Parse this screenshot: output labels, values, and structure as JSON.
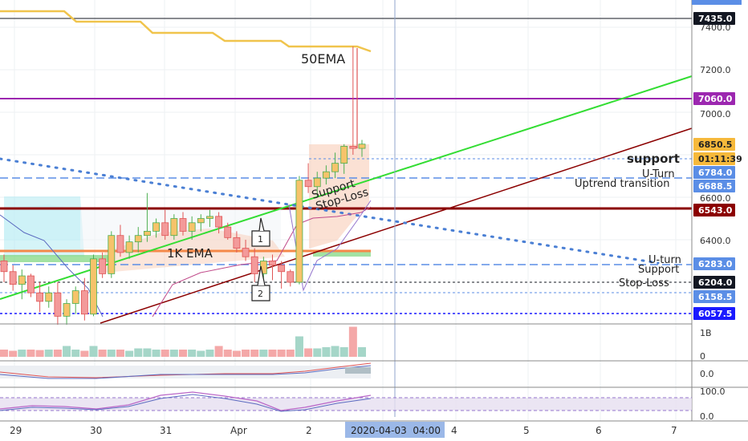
{
  "chart_data": {
    "type": "candlestick",
    "title": "",
    "ylim": [
      6000,
      7550
    ],
    "x_tick_labels": [
      "29",
      "30",
      "31",
      "Apr",
      "2",
      "3",
      "4",
      "5",
      "6",
      "7"
    ],
    "y_tick_labels": [
      "7400.0",
      "7200.0",
      "7000.0",
      "6600.0",
      "6400.0"
    ],
    "price_tags": [
      {
        "label": "7435.0",
        "value": 7435,
        "color": "#131722"
      },
      {
        "label": "7060.0",
        "value": 7060,
        "color": "#9c27b0"
      },
      {
        "label": "6850.5",
        "value": 6850.5,
        "color": "#f6b93b"
      },
      {
        "label": "01:11:39",
        "value": 6797,
        "color": "#f6b93b"
      },
      {
        "label": "6784.0",
        "value": 6741,
        "color": "#5b8ee6"
      },
      {
        "label": "6688.5",
        "value": 6685,
        "color": "#5b8ee6"
      },
      {
        "label": "6543.0",
        "value": 6543,
        "color": "#8b0000"
      },
      {
        "label": "6283.0",
        "value": 6283,
        "color": "#5b8ee6"
      },
      {
        "label": "6204.0",
        "value": 6204,
        "color": "#131722"
      },
      {
        "label": "6158.5",
        "value": 6150,
        "color": "#5b8ee6"
      },
      {
        "label": "6057.5",
        "value": 6057.5,
        "color": "#1a1aff"
      }
    ],
    "annotations": [
      "50EMA",
      "1K EMA",
      "support",
      "U-Turn",
      "Uptrend transition",
      "Support",
      "Stop-Loss",
      "U-turn",
      "Support",
      "Stop-Loss",
      "1",
      "2"
    ],
    "crosshair_label": "2020-04-03  04:00",
    "volume_labels": [
      "1B",
      "0"
    ],
    "macd_labels": [
      "0.0"
    ],
    "rsi_labels": [
      "100.0",
      "0.0"
    ],
    "candles": [
      [
        6300,
        6330,
        6200,
        6250
      ],
      [
        6250,
        6280,
        6160,
        6190
      ],
      [
        6190,
        6260,
        6120,
        6230
      ],
      [
        6230,
        6240,
        6130,
        6150
      ],
      [
        6150,
        6200,
        6060,
        6110
      ],
      [
        6110,
        6180,
        6080,
        6150
      ],
      [
        6150,
        6200,
        6000,
        6040
      ],
      [
        6040,
        6120,
        6000,
        6100
      ],
      [
        6100,
        6180,
        6050,
        6160
      ],
      [
        6160,
        6220,
        6020,
        6050
      ],
      [
        6050,
        6330,
        6040,
        6310
      ],
      [
        6310,
        6340,
        6220,
        6240
      ],
      [
        6240,
        6440,
        6220,
        6420
      ],
      [
        6420,
        6470,
        6320,
        6340
      ],
      [
        6340,
        6420,
        6310,
        6390
      ],
      [
        6390,
        6460,
        6340,
        6420
      ],
      [
        6420,
        6620,
        6390,
        6440
      ],
      [
        6440,
        6500,
        6410,
        6480
      ],
      [
        6480,
        6540,
        6400,
        6420
      ],
      [
        6420,
        6520,
        6400,
        6500
      ],
      [
        6500,
        6530,
        6420,
        6440
      ],
      [
        6440,
        6510,
        6400,
        6480
      ],
      [
        6480,
        6520,
        6440,
        6500
      ],
      [
        6500,
        6540,
        6460,
        6510
      ],
      [
        6510,
        6530,
        6430,
        6460
      ],
      [
        6460,
        6480,
        6400,
        6410
      ],
      [
        6410,
        6440,
        6340,
        6360
      ],
      [
        6360,
        6400,
        6300,
        6320
      ],
      [
        6320,
        6360,
        6200,
        6240
      ],
      [
        6240,
        6320,
        6170,
        6300
      ],
      [
        6300,
        6330,
        6210,
        6280
      ],
      [
        6280,
        6300,
        6170,
        6250
      ],
      [
        6250,
        6260,
        6180,
        6200
      ],
      [
        6200,
        6700,
        6190,
        6680
      ],
      [
        6680,
        6760,
        6620,
        6650
      ],
      [
        6650,
        6720,
        6600,
        6690
      ],
      [
        6690,
        6750,
        6660,
        6720
      ],
      [
        6720,
        6810,
        6690,
        6760
      ],
      [
        6760,
        6850,
        6710,
        6840
      ],
      [
        6840,
        7310,
        6800,
        6830
      ],
      [
        6830,
        6870,
        6790,
        6850
      ]
    ],
    "volume": [
      0.3,
      0.25,
      0.3,
      0.3,
      0.28,
      0.3,
      0.3,
      0.45,
      0.3,
      0.25,
      0.45,
      0.3,
      0.3,
      0.3,
      0.25,
      0.35,
      0.35,
      0.3,
      0.3,
      0.3,
      0.3,
      0.3,
      0.25,
      0.3,
      0.45,
      0.3,
      0.25,
      0.3,
      0.3,
      0.3,
      0.3,
      0.3,
      0.3,
      0.85,
      0.35,
      0.35,
      0.4,
      0.45,
      0.4,
      1.25,
      0.4
    ]
  }
}
